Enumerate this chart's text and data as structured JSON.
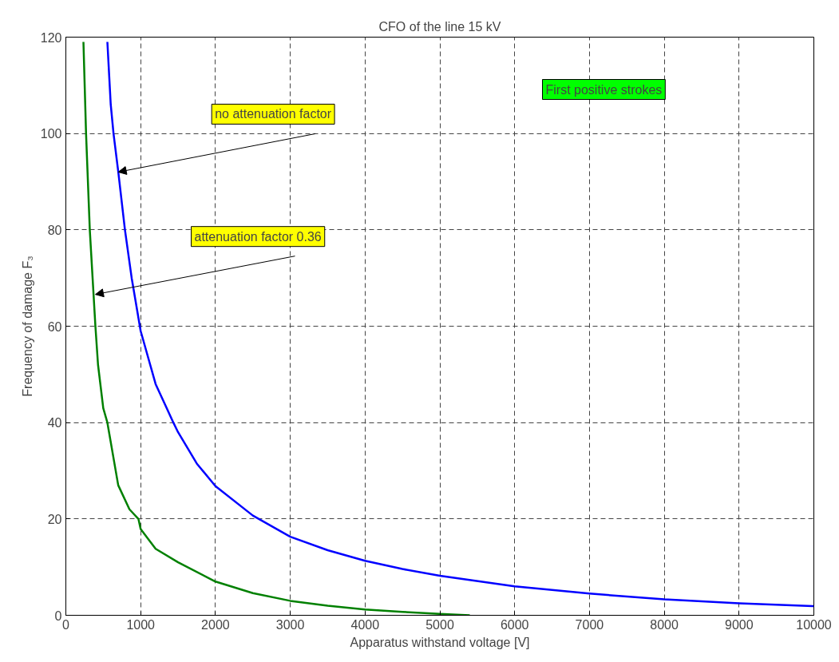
{
  "chart_data": {
    "type": "line",
    "title": "CFO of the line 15 kV",
    "xlabel": "Apparatus withstand voltage [V]",
    "ylabel": "Frequency of damage F₃",
    "xlim": [
      0,
      10000
    ],
    "ylim": [
      0,
      120
    ],
    "xticks": [
      0,
      1000,
      2000,
      3000,
      4000,
      5000,
      6000,
      7000,
      8000,
      9000,
      10000
    ],
    "yticks": [
      0,
      20,
      40,
      60,
      80,
      100,
      120
    ],
    "grid": true,
    "marker": "none",
    "line_style": "solid",
    "series": [
      {
        "color": "#0000ff",
        "x": [
          555,
          600,
          637,
          701,
          790,
          880,
          1000,
          1200,
          1437,
          1500,
          1750,
          2000,
          2500,
          3000,
          3500,
          4000,
          4500,
          5000,
          6000,
          7000,
          8000,
          9000,
          10000
        ],
        "values": [
          119,
          106,
          100,
          92,
          80,
          70,
          59,
          48,
          40,
          38,
          31.5,
          26.8,
          20.7,
          16.3,
          13.5,
          11.3,
          9.6,
          8.2,
          6.0,
          4.5,
          3.3,
          2.5,
          1.9
        ]
      },
      {
        "color": "#008000",
        "x": [
          235,
          270,
          320,
          395,
          430,
          500,
          555,
          700,
          850,
          970,
          1000,
          1200,
          1500,
          2000,
          2500,
          3000,
          3500,
          4000,
          4500,
          5000,
          5400
        ],
        "values": [
          119,
          100,
          80,
          60,
          52,
          43,
          40,
          27,
          22,
          20,
          17.9,
          13.8,
          11.0,
          7.0,
          4.6,
          3.0,
          2.0,
          1.2,
          0.7,
          0.3,
          0
        ]
      }
    ],
    "annotations": [
      {
        "text": "no attenuation factor",
        "x": 701,
        "y": 92
      },
      {
        "text": "attenuation factor 0.36",
        "x": 395,
        "y": 66.6
      },
      "First positive strokes"
    ]
  }
}
